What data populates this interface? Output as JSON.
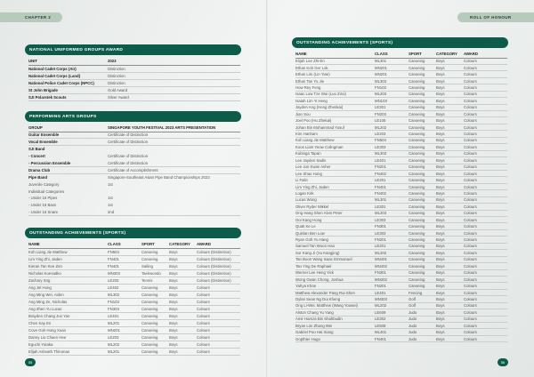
{
  "header": {
    "chapter": "CHAPTER 2",
    "section": "ROLL OF HONOUR"
  },
  "nuga": {
    "title": "NATIONAL UNIFORMED GROUPS AWARD",
    "columns": [
      "UNIT",
      "2023"
    ],
    "rows": [
      [
        "National Cadet Corps (Air)",
        "Distinction"
      ],
      [
        "National Cadet Corps (Land)",
        "Distinction"
      ],
      [
        "National Police Cadet Corps (NPCC)",
        "Distinction"
      ],
      [
        "St John Brigade",
        "Gold Award"
      ],
      [
        "SJI Polarstek Scouts",
        "Silver Award"
      ]
    ]
  },
  "arts": {
    "title": "PERFORMING ARTS GROUPS",
    "columns": [
      "GROUP",
      "SINGAPORE YOUTH FESTIVAL 2023 ARTS PRESENTATION"
    ],
    "rows": [
      {
        "c": [
          "Guitar Ensemble",
          "Certificate of Distinction"
        ],
        "bold": true
      },
      {
        "c": [
          "Vocal Ensemble",
          "Certificate of Distinction"
        ],
        "bold": true
      },
      {
        "c": [
          "SJI Band",
          ""
        ],
        "bold": true,
        "nb": true
      },
      {
        "c": [
          "- Concert",
          "Certificate of Distinction"
        ],
        "bold": true,
        "nb": true
      },
      {
        "c": [
          "- Percussion Ensemble",
          "Certificate of Distinction"
        ],
        "bold": true
      },
      {
        "c": [
          "Drama Club",
          "Certificate of Accomplishment"
        ],
        "bold": true
      },
      {
        "c": [
          "Pipe Band",
          "Singapore-Southeast Asian Pipe Band Championships 2023"
        ],
        "bold": true,
        "nb": true
      },
      {
        "c": [
          "Juvenile Category",
          "1st"
        ],
        "nb": true
      },
      {
        "c": [
          "Individual Categories",
          ""
        ],
        "nb": true
      },
      {
        "c": [
          "- Under 16 Pipes",
          "1st"
        ],
        "nb": true
      },
      {
        "c": [
          "- Under 16 Bass",
          "1st"
        ],
        "nb": true
      },
      {
        "c": [
          "- Under 16 Snare",
          "2nd"
        ]
      }
    ]
  },
  "sports_left": {
    "title": "OUTSTANDING ACHIEVEMENTS (SPORTS)",
    "columns": [
      "NAME",
      "CLASS",
      "SPORT",
      "CATEGORY",
      "AWARD"
    ],
    "rows": [
      [
        "Koh Liang Jie Matthew",
        "FN504",
        "Canoeing",
        "Boys",
        "Colours (Distinction)"
      ],
      [
        "Lim Ying Zhi, Jaden",
        "FN401",
        "Canoeing",
        "Boys",
        "Colours (Distinction)"
      ],
      [
        "Kieran Tan Kee Zen",
        "FN401",
        "Sailing",
        "Boys",
        "Colours (Distinction)"
      ],
      [
        "Nicholas Koesadko",
        "MN303",
        "Taekwondo",
        "Boys",
        "Colours (Distinction)"
      ],
      [
        "Zachary Sng",
        "LE202",
        "Tennis",
        "Boys",
        "Colours (Distinction)"
      ],
      [
        "Ang Jel Hong",
        "LE402",
        "Canoeing",
        "Boys",
        "Colours"
      ],
      [
        "Ang Ming Wei, Aiden",
        "ML302",
        "Canoeing",
        "Boys",
        "Colours"
      ],
      [
        "Ang Ming Ze, Nicholas",
        "FN103",
        "Canoeing",
        "Boys",
        "Colours"
      ],
      [
        "Ang Zhen Yu Lucas",
        "FN303",
        "Canoeing",
        "Boys",
        "Colours"
      ],
      [
        "Brayden Chang Jun Yan",
        "LE401",
        "Canoeing",
        "Boys",
        "Colours"
      ],
      [
        "Chen Kay En",
        "ML201",
        "Canoeing",
        "Boys",
        "Colours"
      ],
      [
        "Cove Goh Hong Xuan",
        "MN201",
        "Canoeing",
        "Boys",
        "Colours"
      ],
      [
        "Danny Liu Chaen Hee",
        "LE203",
        "Canoeing",
        "Boys",
        "Colours"
      ],
      [
        "Eguchi Yutaka",
        "ML202",
        "Canoeing",
        "Boys",
        "Colours"
      ],
      [
        "Elijah Ashvath Thiruman",
        "ML201",
        "Canoeing",
        "Boys",
        "Colours"
      ]
    ]
  },
  "sports_right": {
    "title": "OUTSTANDING ACHIEVEMENTS (SPORTS)",
    "columns": [
      "NAME",
      "CLASS",
      "SPORT",
      "CATEGORY",
      "AWARD"
    ],
    "rows": [
      [
        "Elijah Lee Zhi-En",
        "ML301",
        "Canoeing",
        "Boys",
        "Colours"
      ],
      [
        "Ethan Koh Ger Lok",
        "MN201",
        "Canoeing",
        "Boys",
        "Colours"
      ],
      [
        "Ethan Lim (Lin Yian)",
        "MN201",
        "Canoeing",
        "Boys",
        "Colours"
      ],
      [
        "Ethan Tan Yu Jie",
        "ML303",
        "Canoeing",
        "Boys",
        "Colours"
      ],
      [
        "How Rey Feng",
        "FN103",
        "Canoeing",
        "Boys",
        "Colours"
      ],
      [
        "Isaac Low Tze Wui (Luo Zirui)",
        "ML203",
        "Canoeing",
        "Boys",
        "Colours"
      ],
      [
        "Isaiah Lim Yi Heng",
        "MN103",
        "Canoeing",
        "Boys",
        "Colours"
      ],
      [
        "Jayden Ang (Hong Zhenkai)",
        "LE301",
        "Canoeing",
        "Boys",
        "Colours"
      ],
      [
        "Jian Sou",
        "FN203",
        "Canoeing",
        "Boys",
        "Colours"
      ],
      [
        "Joel Poo (Hu Zhekai)",
        "LE105",
        "Canoeing",
        "Boys",
        "Colours"
      ],
      [
        "Johan Bin Mohammad Yusuf",
        "ML202",
        "Canoeing",
        "Boys",
        "Colours"
      ],
      [
        "Kim Hanham",
        "LE203",
        "Canoeing",
        "Boys",
        "Colours"
      ],
      [
        "Koh Liang Jie Matthew",
        "FN504",
        "Canoeing",
        "Boys",
        "Colours"
      ],
      [
        "Koos Liam Yeow Colingman",
        "LE303",
        "Canoeing",
        "Boys",
        "Colours"
      ],
      [
        "Kubinga Tapan",
        "ML303",
        "Canoeing",
        "Boys",
        "Colours"
      ],
      [
        "Lee Jayden Sadin",
        "LE401",
        "Canoeing",
        "Boys",
        "Colours"
      ],
      [
        "Lee Jun Kwan Asher",
        "FN201",
        "Canoeing",
        "Boys",
        "Colours"
      ],
      [
        "Lee Shao Hong",
        "FN402",
        "Canoeing",
        "Boys",
        "Colours"
      ],
      [
        "Li Falin",
        "LE201",
        "Canoeing",
        "Boys",
        "Colours"
      ],
      [
        "Lim Ying Zhi, Jaden",
        "FN401",
        "Canoeing",
        "Boys",
        "Colours"
      ],
      [
        "Logan Kirk",
        "FN402",
        "Canoeing",
        "Boys",
        "Colours"
      ],
      [
        "Lucas Wong",
        "ML301",
        "Canoeing",
        "Boys",
        "Colours"
      ],
      [
        "Oliver Ryder Mikkel",
        "LE301",
        "Canoeing",
        "Boys",
        "Colours"
      ],
      [
        "Ong Hang Shen Alvin Peter",
        "ML203",
        "Canoeing",
        "Boys",
        "Colours"
      ],
      [
        "Ooi Kang Hong",
        "LE303",
        "Canoeing",
        "Boys",
        "Colours"
      ],
      [
        "Quak Ke Le",
        "FN301",
        "Canoeing",
        "Boys",
        "Colours"
      ],
      [
        "Quinlan Ben Low",
        "LE303",
        "Canoeing",
        "Boys",
        "Colours"
      ],
      [
        "Ryan Goh Yu Hang",
        "FN201",
        "Canoeing",
        "Boys",
        "Colours"
      ],
      [
        "Samuel Tan Woon Hao",
        "LE201",
        "Canoeing",
        "Boys",
        "Colours"
      ],
      [
        "Sor Kang Ji (Xu Kangjing)",
        "ML202",
        "Canoeing",
        "Boys",
        "Colours"
      ],
      [
        "Tan Boon Wang Isaac Emmanuel",
        "MN401",
        "Canoeing",
        "Boys",
        "Colours"
      ],
      [
        "Tan Ying De Raphael",
        "MN402",
        "Canoeing",
        "Boys",
        "Colours"
      ],
      [
        "Werner Lee Heng Yick",
        "FN301",
        "Canoeing",
        "Boys",
        "Colours"
      ],
      [
        "Wong Gwan Chong, Joshua",
        "MN302",
        "Canoeing",
        "Boys",
        "Colours"
      ],
      [
        "Yahya Khan",
        "FN201",
        "Canoeing",
        "Boys",
        "Colours"
      ],
      [
        "Matthew Alexander Pang Rui-Shen",
        "LE401",
        "Fencing",
        "Boys",
        "Colours"
      ],
      [
        "Dylan Sean Ng Dui Kheng",
        "MN303",
        "Golf",
        "Boys",
        "Colours"
      ],
      [
        "Ong Li-Wei, Matthew (Wang Youwei)",
        "ML202",
        "Golf",
        "Boys",
        "Colours"
      ],
      [
        "Alston Chang Yu Yang",
        "LE609",
        "Judo",
        "Boys",
        "Colours"
      ],
      [
        "Amir Hamza Bin Shahbudin",
        "LE302",
        "Judo",
        "Boys",
        "Colours"
      ],
      [
        "Bryan Lim Zhang Wei",
        "LE508",
        "Judo",
        "Boys",
        "Colours"
      ],
      [
        "Gabriel Poo Hai Xiang",
        "ML401",
        "Judo",
        "Boys",
        "Colours"
      ],
      [
        "Gopthier Hugo",
        "FN401",
        "Judo",
        "Boys",
        "Colours"
      ]
    ]
  },
  "page_numbers": {
    "left": "55",
    "right": "56"
  },
  "colors": {
    "accent": "#0d5c4a",
    "pill": "#b7cbbd"
  }
}
